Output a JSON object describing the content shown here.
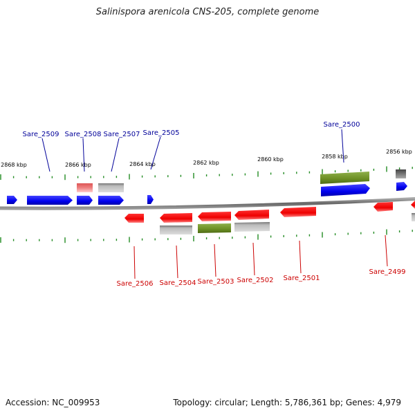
{
  "title": "Salinispora arenicola CNS-205, complete genome",
  "footer": {
    "accession": "Accession: NC_009953",
    "topology": "Topology: circular; Length: 5,786,361 bp; Genes: 4,979"
  },
  "colors": {
    "cds": "#0000ee",
    "cds_reverse": "#ee0000",
    "rna": "#6b8e23",
    "pseudo": "#aaaaaa",
    "pink": "#ee8080",
    "backbone": "#777777",
    "tick": "#228b22",
    "label_forward": "#000099",
    "label_reverse": "#cc0000"
  },
  "axis": {
    "unit": "kbp",
    "labels": [
      "2868 kbp",
      "2866 kbp",
      "2864 kbp",
      "2862 kbp",
      "2860 kbp",
      "2858 kbp",
      "2856 kbp"
    ],
    "label_kbp": [
      2868,
      2866,
      2864,
      2862,
      2860,
      2858,
      2856
    ]
  },
  "gene_labels": {
    "forward": [
      "Sare_2509",
      "Sare_2508",
      "Sare_2507",
      "Sare_2505",
      "Sare_2500"
    ],
    "reverse": [
      "Sare_2506",
      "Sare_2504",
      "Sare_2503",
      "Sare_2502",
      "Sare_2501",
      "Sare_2499"
    ]
  }
}
